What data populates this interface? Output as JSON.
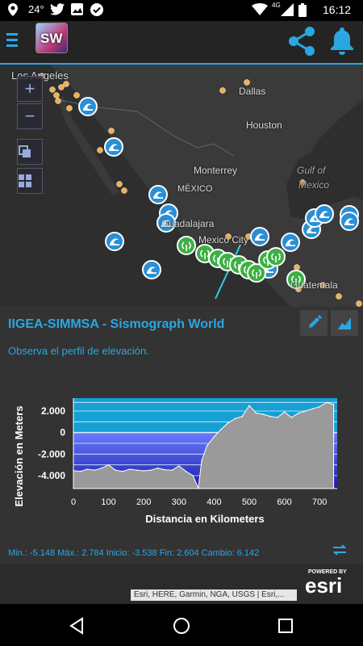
{
  "status_bar": {
    "temperature": "24°",
    "network": "4G",
    "time": "16:12"
  },
  "app": {
    "logo_text": "SW"
  },
  "map": {
    "labels": [
      {
        "id": "los-angeles",
        "text": "Los Angeles"
      },
      {
        "id": "dallas",
        "text": "Dallas"
      },
      {
        "id": "houston",
        "text": "Houston"
      },
      {
        "id": "monterrey",
        "text": "Monterrey"
      },
      {
        "id": "mexico",
        "text": "MÉXICO"
      },
      {
        "id": "gulf",
        "text": "Gulf of"
      },
      {
        "id": "gulf2",
        "text": "Mexico"
      },
      {
        "id": "guadalajara",
        "text": "Guadalajara"
      },
      {
        "id": "mexico-city",
        "text": "Mexico City"
      },
      {
        "id": "guatemala",
        "text": "Guatemala"
      }
    ],
    "zoom_in": "+",
    "zoom_out": "−"
  },
  "panel": {
    "title": "IIGEA-SIMMSA - Sismograph World",
    "subtitle": "Observa el perfil de elevación.",
    "stats": "Min.: -5.148 Máx.: 2.784 Inicio: -3.538 Fin: 2.604 Cambio: 6.142"
  },
  "chart_data": {
    "type": "area",
    "xlabel": "Distancia en Kilometers",
    "ylabel": "Elevación en Meters",
    "xlim": [
      0,
      750
    ],
    "ylim": [
      -5200,
      3200
    ],
    "x_ticks": [
      "0",
      "100",
      "200",
      "300",
      "400",
      "500",
      "600",
      "700"
    ],
    "y_ticks": [
      "2.000",
      "0",
      "-2.000",
      "-4.000"
    ],
    "x": [
      0,
      20,
      40,
      60,
      80,
      100,
      120,
      140,
      160,
      180,
      200,
      220,
      240,
      260,
      280,
      300,
      320,
      340,
      355,
      365,
      380,
      400,
      420,
      440,
      460,
      480,
      500,
      520,
      540,
      560,
      580,
      600,
      620,
      640,
      660,
      680,
      700,
      720,
      740
    ],
    "values": [
      -3538,
      -3600,
      -3400,
      -3500,
      -3300,
      -3000,
      -3500,
      -3600,
      -3400,
      -3500,
      -3550,
      -3500,
      -3300,
      -3450,
      -3500,
      -3100,
      -3600,
      -4000,
      -5148,
      -2600,
      -1200,
      -400,
      300,
      900,
      1300,
      1500,
      2500,
      1800,
      1700,
      1500,
      1400,
      1900,
      1400,
      1800,
      2000,
      2200,
      2400,
      2784,
      2604
    ]
  },
  "attribution": "Esri, HERE, Garmin, NGA, USGS | Esri,...",
  "powered_by": "POWERED BY",
  "esri": "esri"
}
